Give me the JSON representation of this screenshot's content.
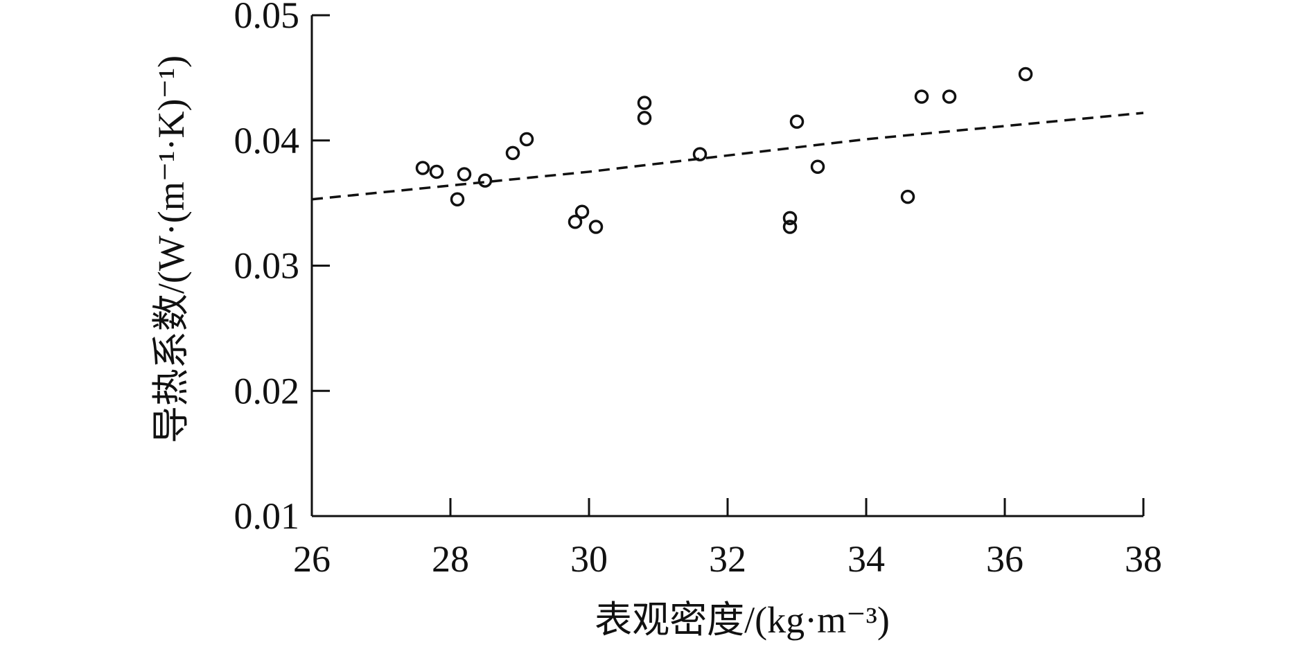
{
  "chart_data": {
    "type": "scatter",
    "title": "",
    "xlabel": "表观密度/(kg·m⁻³)",
    "ylabel": "导热系数/(W·(m⁻¹·K)⁻¹)",
    "xlim": [
      26,
      38
    ],
    "ylim": [
      0.01,
      0.05
    ],
    "x_ticks": [
      "26",
      "28",
      "30",
      "32",
      "34",
      "36",
      "38"
    ],
    "y_ticks": [
      "0.01",
      "0.02",
      "0.03",
      "0.04",
      "0.05"
    ],
    "grid": false,
    "legend": "none",
    "series": [
      {
        "marker": "open-circle",
        "points": [
          [
            27.6,
            0.0378
          ],
          [
            27.8,
            0.0375
          ],
          [
            28.1,
            0.0353
          ],
          [
            28.2,
            0.0373
          ],
          [
            28.5,
            0.0368
          ],
          [
            28.9,
            0.039
          ],
          [
            29.1,
            0.0401
          ],
          [
            29.8,
            0.0335
          ],
          [
            29.9,
            0.0343
          ],
          [
            30.1,
            0.0331
          ],
          [
            30.8,
            0.043
          ],
          [
            30.8,
            0.0418
          ],
          [
            31.6,
            0.0389
          ],
          [
            32.9,
            0.0338
          ],
          [
            32.9,
            0.0331
          ],
          [
            33.0,
            0.0415
          ],
          [
            33.3,
            0.0379
          ],
          [
            34.6,
            0.0355
          ],
          [
            34.8,
            0.0435
          ],
          [
            35.2,
            0.0435
          ],
          [
            36.3,
            0.0453
          ]
        ]
      }
    ],
    "trend_line": {
      "style": "dashed",
      "x": [
        26,
        30,
        34,
        38
      ],
      "y": [
        0.0353,
        0.0375,
        0.0401,
        0.0422
      ]
    }
  }
}
